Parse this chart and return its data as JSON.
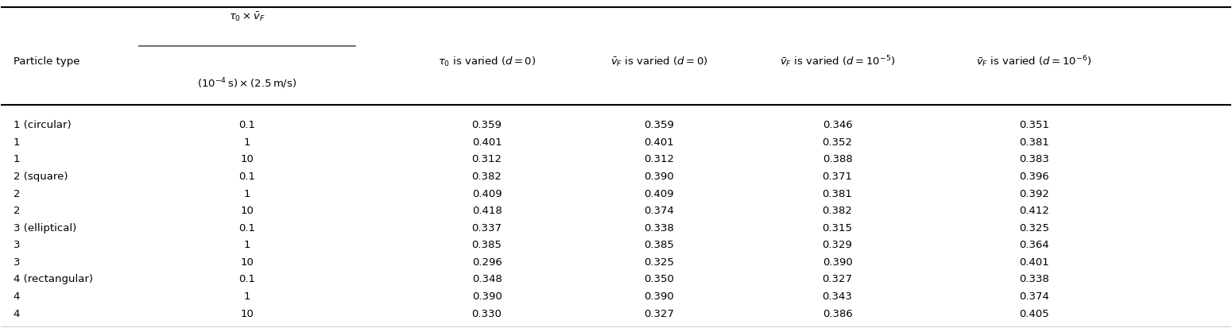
{
  "col0_header": "Particle type",
  "col1_header_line1": "$\\tau_0 \\times \\bar{v}_F$",
  "col1_header_line2": "$(10^{-4}\\,\\mathrm{s}) \\times (2.5\\,\\mathrm{m/s})$",
  "col2_header": "$\\tau_0$ is varied ($d{=}0$)",
  "col3_header": "$\\bar{v}_F$ is varied ($d{=}0$)",
  "col4_header": "$\\bar{v}_F$ is varied ($d = 10^{-5}$)",
  "col5_header": "$\\bar{v}_F$ is varied ($d = 10^{-6}$)",
  "rows": [
    [
      "1 (circular)",
      "0.1",
      "0.359",
      "0.359",
      "0.346",
      "0.351"
    ],
    [
      "1",
      "1",
      "0.401",
      "0.401",
      "0.352",
      "0.381"
    ],
    [
      "1",
      "10",
      "0.312",
      "0.312",
      "0.388",
      "0.383"
    ],
    [
      "2 (square)",
      "0.1",
      "0.382",
      "0.390",
      "0.371",
      "0.396"
    ],
    [
      "2",
      "1",
      "0.409",
      "0.409",
      "0.381",
      "0.392"
    ],
    [
      "2",
      "10",
      "0.418",
      "0.374",
      "0.382",
      "0.412"
    ],
    [
      "3 (elliptical)",
      "0.1",
      "0.337",
      "0.338",
      "0.315",
      "0.325"
    ],
    [
      "3",
      "1",
      "0.385",
      "0.385",
      "0.329",
      "0.364"
    ],
    [
      "3",
      "10",
      "0.296",
      "0.325",
      "0.390",
      "0.401"
    ],
    [
      "4 (rectangular)",
      "0.1",
      "0.348",
      "0.350",
      "0.327",
      "0.338"
    ],
    [
      "4",
      "1",
      "0.390",
      "0.390",
      "0.343",
      "0.374"
    ],
    [
      "4",
      "10",
      "0.330",
      "0.327",
      "0.386",
      "0.405"
    ]
  ],
  "bg_color": "#ffffff",
  "text_color": "#000000",
  "font_size": 9.5,
  "header_font_size": 9.5
}
